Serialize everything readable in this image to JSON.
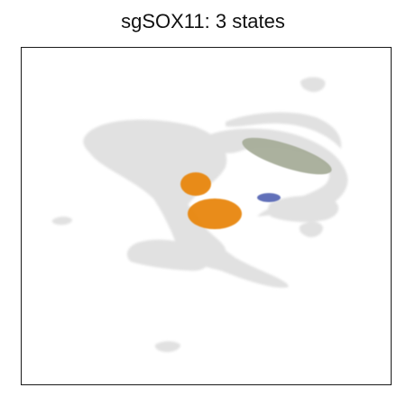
{
  "chart_data": {
    "type": "scatter",
    "title": "sgSOX11: 3 states",
    "xlabel": "",
    "ylabel": "",
    "grid": false,
    "legend": "none",
    "background_color": "#dcdcdc",
    "series": [
      {
        "color": "#e8870e",
        "regions": [
          {
            "center": [
              217,
              204
            ],
            "radius": [
              17,
              13
            ]
          },
          {
            "center": [
              238,
              237
            ],
            "radius": [
              30,
              17
            ]
          }
        ]
      },
      {
        "color": "#5a68b5",
        "regions": [
          {
            "center": [
              298,
              219
            ],
            "radius": [
              13,
              5
            ]
          }
        ]
      },
      {
        "color": "#a7ad99",
        "regions": [
          {
            "center": [
              318,
              173
            ],
            "radius": [
              52,
              13
            ]
          }
        ]
      }
    ]
  }
}
